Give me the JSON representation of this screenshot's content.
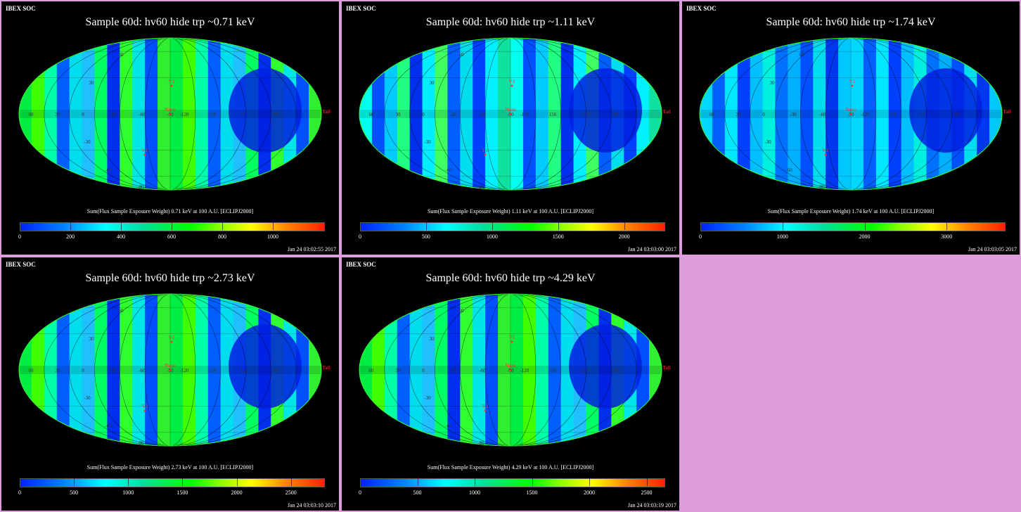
{
  "panels": [
    {
      "header": "IBEX SOC",
      "title": "Sample 60d: hv60 hide trp ~0.71 keV",
      "caption": "Sum(Flux Sample Exposure Weight)  0.71 keV at 100 A.U. [ECLIPJ2000]",
      "timestamp": "Jan 24 03:02:55 2017",
      "colorbar_ticks": [
        "0",
        "200",
        "400",
        "600",
        "800",
        "1000"
      ],
      "colorbar_max": 1200,
      "scheme": "green"
    },
    {
      "header": "IBEX SOC",
      "title": "Sample 60d: hv60 hide trp ~1.11 keV",
      "caption": "Sum(Flux Sample Exposure Weight)  1.11 keV at 100 A.U. [ECLIPJ2000]",
      "timestamp": "Jan 24 03:03:00 2017",
      "colorbar_ticks": [
        "0",
        "500",
        "1000",
        "1500",
        "2000"
      ],
      "colorbar_max": 2300,
      "scheme": "cyan"
    },
    {
      "header": "IBEX SOC",
      "title": "Sample 60d: hv60 hide trp ~1.74 keV",
      "caption": "Sum(Flux Sample Exposure Weight)  1.74 keV at 100 A.U. [ECLIPJ2000]",
      "timestamp": "Jan 24 03:03:05 2017",
      "colorbar_ticks": [
        "0",
        "1000",
        "2000",
        "3000"
      ],
      "colorbar_max": 3700,
      "scheme": "blue"
    },
    {
      "header": "IBEX SOC",
      "title": "Sample 60d: hv60 hide trp ~2.73 keV",
      "caption": "Sum(Flux Sample Exposure Weight)  2.73 keV at 100 A.U. [ECLIPJ2000]",
      "timestamp": "Jan 24 03:03:10 2017",
      "colorbar_ticks": [
        "0",
        "500",
        "1000",
        "1500",
        "2000",
        "2500"
      ],
      "colorbar_max": 2800,
      "scheme": "green"
    },
    {
      "header": "IBEX SOC",
      "title": "Sample 60d: hv60 hide trp ~4.29 keV",
      "caption": "Sum(Flux Sample Exposure Weight)  4.29 keV at 100 A.U. [ECLIPJ2000]",
      "timestamp": "Jan 24 03:03:19 2017",
      "colorbar_ticks": [
        "0",
        "500",
        "1000",
        "1500",
        "2000",
        "2500"
      ],
      "colorbar_max": 2650,
      "scheme": "green"
    }
  ],
  "map_labels": {
    "v1": "V1",
    "v2": "V2",
    "nose": "Nose",
    "tail": "Tail",
    "grid": [
      "60",
      "30",
      "0",
      "-30",
      "-60",
      "-90",
      "-120",
      "150",
      "120",
      "90",
      "180",
      "-150"
    ],
    "lat": [
      "60",
      "30",
      "-30",
      "-60",
      "-90"
    ]
  },
  "colors": {
    "background": "#dd9ddd",
    "panel_bg": "#000000",
    "marker": "#ff3333"
  }
}
